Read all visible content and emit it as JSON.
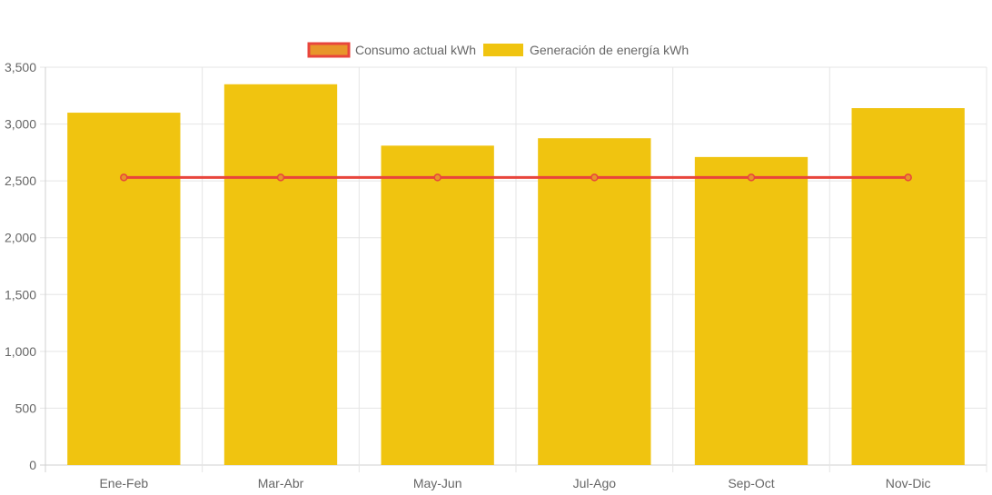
{
  "chart_data": {
    "type": "bar",
    "categories": [
      "Ene-Feb",
      "Mar-Abr",
      "May-Jun",
      "Jul-Ago",
      "Sep-Oct",
      "Nov-Dic"
    ],
    "series": [
      {
        "name": "Consumo actual kWh",
        "type": "line",
        "values": [
          2530,
          2530,
          2530,
          2530,
          2530,
          2530
        ],
        "color": "#e8453c",
        "fill": "#e8952a"
      },
      {
        "name": "Generación de energía kWh",
        "type": "bar",
        "values": [
          3100,
          3350,
          2810,
          2875,
          2710,
          3140
        ],
        "color": "#f0c410"
      }
    ],
    "ylim": [
      0,
      3500
    ],
    "yticks": [
      0,
      500,
      1000,
      1500,
      2000,
      2500,
      3000,
      3500
    ],
    "ytick_labels": [
      "0",
      "500",
      "1,000",
      "1,500",
      "2,000",
      "2,500",
      "3,000",
      "3,500"
    ],
    "grid": true,
    "legend_position": "top-center"
  }
}
